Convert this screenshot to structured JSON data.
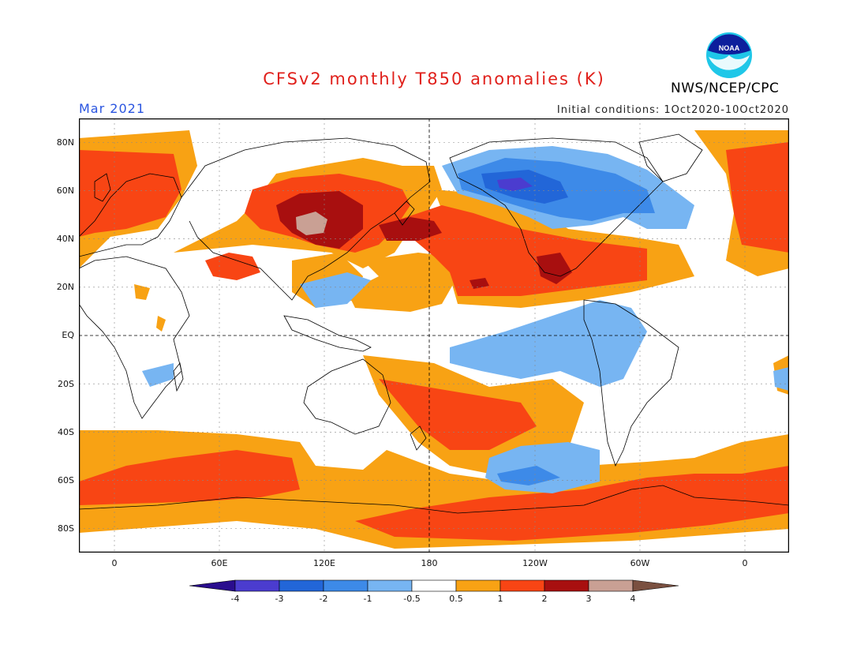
{
  "title": "CFSv2 monthly T850 anomalies (K)",
  "month": "Mar 2021",
  "initial_conditions": "Initial conditions: 1Oct2020-10Oct2020",
  "agency": "NWS/NCEP/CPC",
  "logo_text": "NOAA",
  "lat_labels": [
    "80N",
    "60N",
    "40N",
    "20N",
    "EQ",
    "20S",
    "40S",
    "60S",
    "80S"
  ],
  "lon_labels": [
    "0",
    "60E",
    "120E",
    "180",
    "120W",
    "60W",
    "0"
  ],
  "colorbar": {
    "levels": [
      "-4",
      "-3",
      "-2",
      "-1",
      "-0.5",
      "0.5",
      "1",
      "2",
      "3",
      "4"
    ],
    "colors": [
      "#2a0d8e",
      "#4b3ccf",
      "#2266d8",
      "#3d8ae8",
      "#77b5f2",
      "#ffffff",
      "#f8a214",
      "#f84514",
      "#a80f0f",
      "#c9a094",
      "#7a5040"
    ]
  },
  "icons": {
    "logo": "noaa-logo-icon"
  }
}
